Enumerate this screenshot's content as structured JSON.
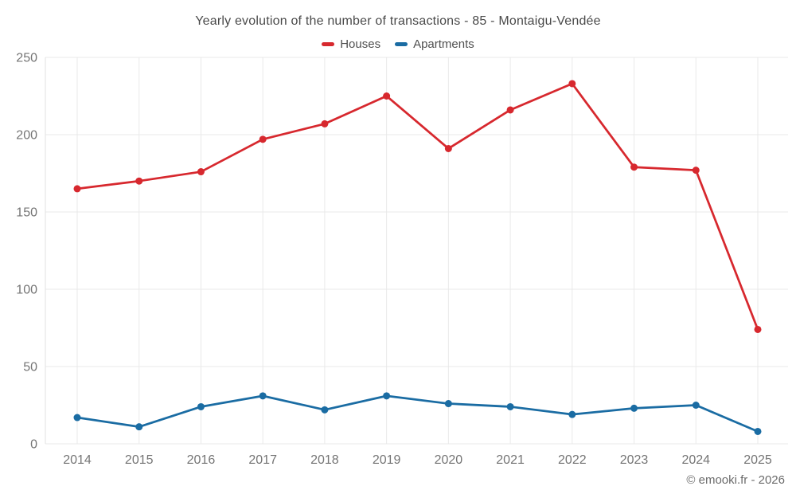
{
  "header": {
    "title": "Yearly evolution of the number of transactions - 85 - Montaigu-Vendée"
  },
  "footer": {
    "credit": "© emooki.fr - 2026"
  },
  "chart_data": {
    "type": "line",
    "categories": [
      "2014",
      "2015",
      "2016",
      "2017",
      "2018",
      "2019",
      "2020",
      "2021",
      "2022",
      "2023",
      "2024",
      "2025"
    ],
    "series": [
      {
        "name": "Houses",
        "color": "#d7282e",
        "values": [
          165,
          170,
          176,
          197,
          207,
          225,
          191,
          216,
          233,
          179,
          177,
          74
        ]
      },
      {
        "name": "Apartments",
        "color": "#1a6ca3",
        "values": [
          17,
          11,
          24,
          31,
          22,
          31,
          26,
          24,
          19,
          23,
          25,
          8
        ]
      }
    ],
    "title": "Yearly evolution of the number of transactions - 85 - Montaigu-Vendée",
    "xlabel": "",
    "ylabel": "",
    "ylim": [
      0,
      250
    ],
    "ytick_step": 50,
    "grid": true,
    "legend_position": "top",
    "marker": "circle"
  }
}
